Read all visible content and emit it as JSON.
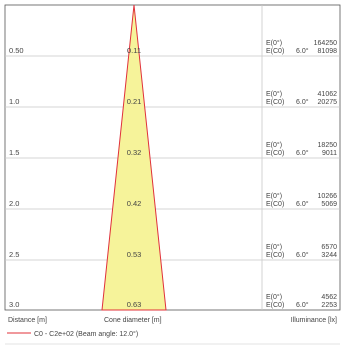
{
  "chart_data": {
    "type": "table",
    "rows": [
      {
        "distance": "0.50",
        "diameter": "0.11",
        "e0_label": "E(0°)",
        "ec0_label": "E(C0)",
        "angle": "6.0°",
        "e0_value": "164250",
        "ec0_value": "81098"
      },
      {
        "distance": "1.0",
        "diameter": "0.21",
        "e0_label": "E(0°)",
        "ec0_label": "E(C0)",
        "angle": "6.0°",
        "e0_value": "41062",
        "ec0_value": "20275"
      },
      {
        "distance": "1.5",
        "diameter": "0.32",
        "e0_label": "E(0°)",
        "ec0_label": "E(C0)",
        "angle": "6.0°",
        "e0_value": "18250",
        "ec0_value": "9011"
      },
      {
        "distance": "2.0",
        "diameter": "0.42",
        "e0_label": "E(0°)",
        "ec0_label": "E(C0)",
        "angle": "6.0°",
        "e0_value": "10266",
        "ec0_value": "5069"
      },
      {
        "distance": "2.5",
        "diameter": "0.53",
        "e0_label": "E(0°)",
        "ec0_label": "E(C0)",
        "angle": "6.0°",
        "e0_value": "6570",
        "ec0_value": "3244"
      },
      {
        "distance": "3.0",
        "diameter": "0.63",
        "e0_label": "E(0°)",
        "ec0_label": "E(C0)",
        "angle": "6.0°",
        "e0_value": "4562",
        "ec0_value": "2253"
      }
    ],
    "footer": {
      "distance_label": "Distance [m]",
      "cone_label": "Cone diameter [m]",
      "illuminance_label": "Illuminance [lx]"
    },
    "legend": {
      "text": "C0 - C2e+02 (Beam angle: 12.0°)",
      "color": "#e0303a"
    },
    "colors": {
      "cone_fill": "#f6f39a",
      "cone_stroke": "#e0303a",
      "grid": "#c8c8c8",
      "frame": "#555555"
    }
  }
}
